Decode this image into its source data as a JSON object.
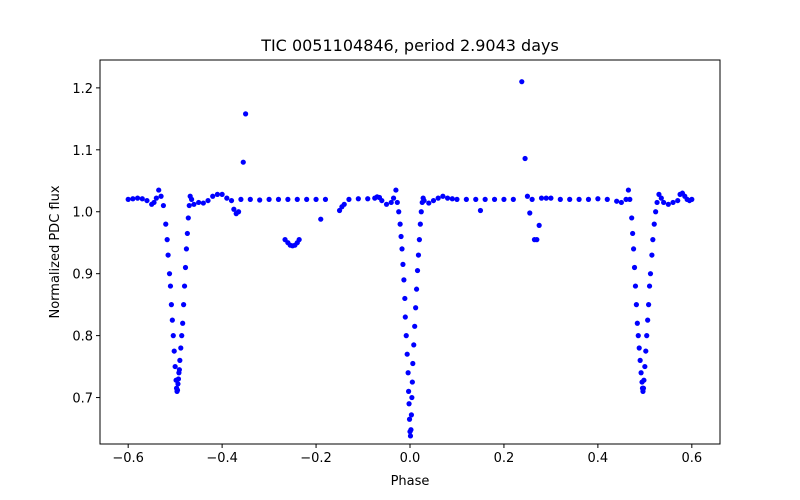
{
  "chart_data": {
    "type": "scatter",
    "title": "TIC 0051104846, period 2.9043 days",
    "xlabel": "Phase",
    "ylabel": "Normalized PDC flux",
    "xlim": [
      -0.66,
      0.66
    ],
    "ylim": [
      0.625,
      1.245
    ],
    "grid": false,
    "legend": "none",
    "marker_color": "#0000ff",
    "xticks": [
      -0.6,
      -0.4,
      -0.2,
      0.0,
      0.2,
      0.4,
      0.6
    ],
    "xtick_labels": [
      "−0.6",
      "−0.4",
      "−0.2",
      "0.0",
      "0.2",
      "0.4",
      "0.6"
    ],
    "yticks": [
      0.7,
      0.8,
      0.9,
      1.0,
      1.1,
      1.2
    ],
    "ytick_labels": [
      "0.7",
      "0.8",
      "0.9",
      "1.0",
      "1.1",
      "1.2"
    ],
    "points": [
      [
        -0.6,
        1.02
      ],
      [
        -0.59,
        1.021
      ],
      [
        -0.58,
        1.022
      ],
      [
        -0.57,
        1.021
      ],
      [
        -0.56,
        1.018
      ],
      [
        -0.55,
        1.012
      ],
      [
        -0.545,
        1.015
      ],
      [
        -0.54,
        1.022
      ],
      [
        -0.535,
        1.035
      ],
      [
        -0.53,
        1.025
      ],
      [
        -0.525,
        1.01
      ],
      [
        -0.52,
        0.98
      ],
      [
        -0.517,
        0.955
      ],
      [
        -0.515,
        0.93
      ],
      [
        -0.512,
        0.9
      ],
      [
        -0.51,
        0.88
      ],
      [
        -0.508,
        0.85
      ],
      [
        -0.506,
        0.825
      ],
      [
        -0.504,
        0.8
      ],
      [
        -0.502,
        0.775
      ],
      [
        -0.5,
        0.75
      ],
      [
        -0.498,
        0.728
      ],
      [
        -0.497,
        0.715
      ],
      [
        -0.496,
        0.71
      ],
      [
        -0.495,
        0.712
      ],
      [
        -0.494,
        0.722
      ],
      [
        -0.493,
        0.73
      ],
      [
        -0.492,
        0.74
      ],
      [
        -0.491,
        0.745
      ],
      [
        -0.49,
        0.76
      ],
      [
        -0.488,
        0.78
      ],
      [
        -0.486,
        0.8
      ],
      [
        -0.484,
        0.82
      ],
      [
        -0.482,
        0.85
      ],
      [
        -0.48,
        0.88
      ],
      [
        -0.478,
        0.91
      ],
      [
        -0.476,
        0.94
      ],
      [
        -0.474,
        0.965
      ],
      [
        -0.472,
        0.99
      ],
      [
        -0.47,
        1.01
      ],
      [
        -0.468,
        1.025
      ],
      [
        -0.465,
        1.02
      ],
      [
        -0.46,
        1.012
      ],
      [
        -0.45,
        1.015
      ],
      [
        -0.44,
        1.014
      ],
      [
        -0.43,
        1.018
      ],
      [
        -0.42,
        1.025
      ],
      [
        -0.41,
        1.028
      ],
      [
        -0.4,
        1.028
      ],
      [
        -0.39,
        1.022
      ],
      [
        -0.38,
        1.018
      ],
      [
        -0.375,
        1.004
      ],
      [
        -0.37,
        0.997
      ],
      [
        -0.365,
        1.0
      ],
      [
        -0.36,
        1.02
      ],
      [
        -0.355,
        1.08
      ],
      [
        -0.35,
        1.158
      ],
      [
        -0.34,
        1.02
      ],
      [
        -0.32,
        1.019
      ],
      [
        -0.3,
        1.02
      ],
      [
        -0.28,
        1.02
      ],
      [
        -0.266,
        0.955
      ],
      [
        -0.26,
        0.95
      ],
      [
        -0.255,
        0.946
      ],
      [
        -0.25,
        0.945
      ],
      [
        -0.245,
        0.946
      ],
      [
        -0.24,
        0.95
      ],
      [
        -0.236,
        0.955
      ],
      [
        -0.26,
        1.02
      ],
      [
        -0.24,
        1.02
      ],
      [
        -0.22,
        1.02
      ],
      [
        -0.2,
        1.02
      ],
      [
        -0.18,
        1.02
      ],
      [
        -0.19,
        0.988
      ],
      [
        -0.15,
        1.002
      ],
      [
        -0.145,
        1.008
      ],
      [
        -0.14,
        1.012
      ],
      [
        -0.13,
        1.02
      ],
      [
        -0.11,
        1.021
      ],
      [
        -0.09,
        1.021
      ],
      [
        -0.075,
        1.022
      ],
      [
        -0.07,
        1.024
      ],
      [
        -0.065,
        1.023
      ],
      [
        -0.06,
        1.018
      ],
      [
        -0.05,
        1.012
      ],
      [
        -0.04,
        1.015
      ],
      [
        -0.035,
        1.022
      ],
      [
        -0.03,
        1.035
      ],
      [
        -0.027,
        1.015
      ],
      [
        -0.024,
        1.0
      ],
      [
        -0.021,
        0.98
      ],
      [
        -0.019,
        0.96
      ],
      [
        -0.017,
        0.94
      ],
      [
        -0.015,
        0.915
      ],
      [
        -0.013,
        0.89
      ],
      [
        -0.011,
        0.86
      ],
      [
        -0.01,
        0.83
      ],
      [
        -0.008,
        0.8
      ],
      [
        -0.006,
        0.77
      ],
      [
        -0.004,
        0.74
      ],
      [
        -0.003,
        0.71
      ],
      [
        -0.002,
        0.69
      ],
      [
        -0.001,
        0.665
      ],
      [
        0.0,
        0.645
      ],
      [
        0.001,
        0.638
      ],
      [
        0.002,
        0.648
      ],
      [
        0.003,
        0.672
      ],
      [
        0.004,
        0.7
      ],
      [
        0.005,
        0.725
      ],
      [
        0.006,
        0.755
      ],
      [
        0.008,
        0.785
      ],
      [
        0.01,
        0.815
      ],
      [
        0.012,
        0.845
      ],
      [
        0.014,
        0.875
      ],
      [
        0.016,
        0.905
      ],
      [
        0.018,
        0.93
      ],
      [
        0.02,
        0.955
      ],
      [
        0.022,
        0.98
      ],
      [
        0.024,
        1.0
      ],
      [
        0.026,
        1.015
      ],
      [
        0.028,
        1.022
      ],
      [
        0.03,
        1.018
      ],
      [
        0.04,
        1.014
      ],
      [
        0.05,
        1.018
      ],
      [
        0.06,
        1.022
      ],
      [
        0.07,
        1.025
      ],
      [
        0.08,
        1.022
      ],
      [
        0.09,
        1.021
      ],
      [
        0.1,
        1.02
      ],
      [
        0.12,
        1.02
      ],
      [
        0.14,
        1.02
      ],
      [
        0.15,
        1.002
      ],
      [
        0.16,
        1.02
      ],
      [
        0.18,
        1.02
      ],
      [
        0.2,
        1.02
      ],
      [
        0.22,
        1.02
      ],
      [
        0.238,
        1.21
      ],
      [
        0.245,
        1.086
      ],
      [
        0.25,
        1.025
      ],
      [
        0.255,
        0.998
      ],
      [
        0.26,
        1.02
      ],
      [
        0.265,
        0.955
      ],
      [
        0.27,
        0.955
      ],
      [
        0.275,
        0.978
      ],
      [
        0.28,
        1.022
      ],
      [
        0.29,
        1.022
      ],
      [
        0.3,
        1.022
      ],
      [
        0.32,
        1.02
      ],
      [
        0.34,
        1.02
      ],
      [
        0.36,
        1.02
      ],
      [
        0.38,
        1.02
      ],
      [
        0.4,
        1.021
      ],
      [
        0.42,
        1.02
      ],
      [
        0.44,
        1.017
      ],
      [
        0.45,
        1.015
      ],
      [
        0.46,
        1.02
      ],
      [
        0.465,
        1.035
      ],
      [
        0.468,
        1.02
      ],
      [
        0.472,
        0.99
      ],
      [
        0.474,
        0.965
      ],
      [
        0.476,
        0.94
      ],
      [
        0.478,
        0.91
      ],
      [
        0.48,
        0.88
      ],
      [
        0.482,
        0.85
      ],
      [
        0.484,
        0.82
      ],
      [
        0.486,
        0.8
      ],
      [
        0.488,
        0.78
      ],
      [
        0.49,
        0.76
      ],
      [
        0.492,
        0.74
      ],
      [
        0.494,
        0.725
      ],
      [
        0.495,
        0.715
      ],
      [
        0.496,
        0.71
      ],
      [
        0.497,
        0.715
      ],
      [
        0.498,
        0.728
      ],
      [
        0.5,
        0.75
      ],
      [
        0.502,
        0.775
      ],
      [
        0.504,
        0.8
      ],
      [
        0.506,
        0.825
      ],
      [
        0.508,
        0.85
      ],
      [
        0.51,
        0.88
      ],
      [
        0.512,
        0.9
      ],
      [
        0.515,
        0.93
      ],
      [
        0.517,
        0.955
      ],
      [
        0.52,
        0.98
      ],
      [
        0.523,
        1.0
      ],
      [
        0.526,
        1.015
      ],
      [
        0.53,
        1.028
      ],
      [
        0.535,
        1.022
      ],
      [
        0.54,
        1.015
      ],
      [
        0.55,
        1.012
      ],
      [
        0.56,
        1.015
      ],
      [
        0.57,
        1.018
      ],
      [
        0.575,
        1.028
      ],
      [
        0.58,
        1.03
      ],
      [
        0.585,
        1.025
      ],
      [
        0.59,
        1.02
      ],
      [
        0.595,
        1.018
      ],
      [
        0.6,
        1.02
      ]
    ]
  }
}
